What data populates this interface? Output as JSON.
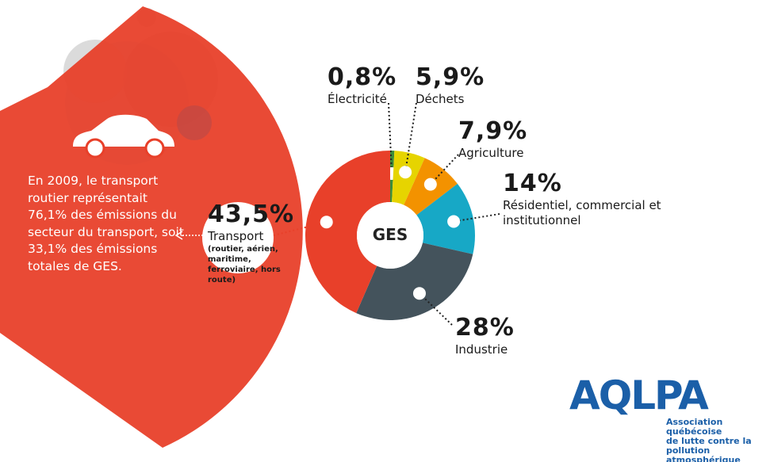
{
  "chart_data": {
    "type": "pie",
    "categories": [
      "Électricité",
      "Déchets",
      "Agriculture",
      "Résidentiel, commercial et institutionnel",
      "Industrie",
      "Transport"
    ],
    "values": [
      0.8,
      5.9,
      7.9,
      14,
      28,
      43.5
    ],
    "value_labels": [
      "0,8%",
      "5,9%",
      "7,9%",
      "14%",
      "28%",
      "43,5%"
    ],
    "colors": [
      "#3c8b3a",
      "#e6d400",
      "#f39200",
      "#17a8c6",
      "#44535c",
      "#e8402a"
    ],
    "center_label": "GES",
    "transport_detail": "(routier, aérien, maritime, ferroviaire, hors route)",
    "annotation": "En 2009, le transport routier représentait 76,1% des émissions du secteur du transport, soit 33,1% des émissions totales de GES."
  },
  "logo": {
    "name": "AQLPA",
    "lines": [
      "Association québécoise",
      "de lutte contre la",
      "pollution atmosphérique"
    ]
  }
}
